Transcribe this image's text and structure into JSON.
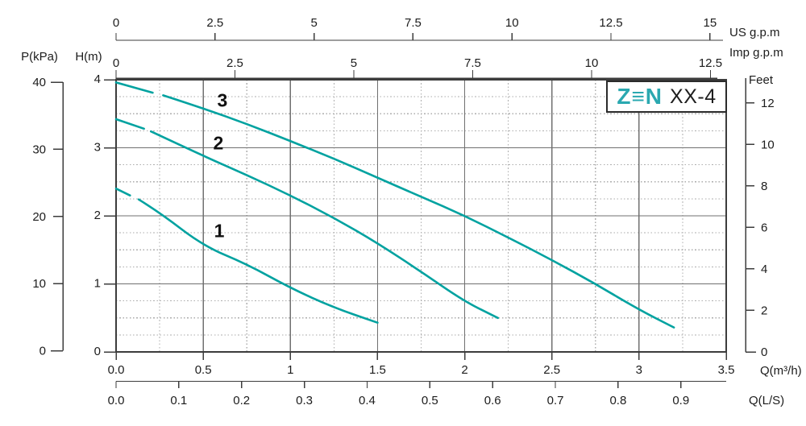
{
  "logo": {
    "brand": "Z≡N",
    "model": "XX-4"
  },
  "axis_titles": {
    "us_gpm": "US  g.p.m",
    "imp_gpm": "Imp  g.p.m",
    "p_kpa": "P(kPa)",
    "h_m": "H(m)",
    "feet": "Feet",
    "q_m3h": "Q(m³/h)",
    "q_ls": "Q(L/S)"
  },
  "colors": {
    "curve": "#00A2A0",
    "brand": "#2AA8B0",
    "grid_solid": "#707070",
    "grid_dot": "#ADADAD",
    "axis": "#3C3C3C",
    "text": "#1C1C1C"
  },
  "chart_data": {
    "type": "line",
    "title": "Pump performance curves XX-4",
    "x_primary": {
      "name": "Q(m³/h)",
      "range": [
        0,
        3.5
      ],
      "ticks": [
        "0.0",
        "0.5",
        "1",
        "1.5",
        "2",
        "2.5",
        "3",
        "3.5"
      ]
    },
    "x_us_gpm": {
      "name": "US g.p.m",
      "m3h_per_unit": 0.22712,
      "ticks": [
        "0",
        "2.5",
        "5",
        "7.5",
        "10",
        "12.5",
        "15"
      ]
    },
    "x_imp_gpm": {
      "name": "Imp g.p.m",
      "m3h_per_unit": 0.27277,
      "ticks": [
        "0",
        "2.5",
        "5",
        "7.5",
        "10",
        "12.5"
      ]
    },
    "x_ls": {
      "name": "Q(L/S)",
      "m3h_per_unit": 3.6,
      "ticks": [
        "0.0",
        "0.1",
        "0.2",
        "0.3",
        "0.4",
        "0.5",
        "0.6",
        "0.7",
        "0.8",
        "0.9"
      ]
    },
    "y_primary": {
      "name": "H(m)",
      "range": [
        0,
        4
      ],
      "ticks": [
        "4",
        "3",
        "2",
        "1",
        "0"
      ]
    },
    "y_kpa": {
      "name": "P(kPa)",
      "range": [
        0,
        40
      ],
      "ticks": [
        "40",
        "30",
        "20",
        "10",
        "0"
      ]
    },
    "y_feet": {
      "name": "Feet",
      "m_per_unit": 0.3048,
      "ticks": [
        "12",
        "10",
        "8",
        "6",
        "4",
        "2",
        "0"
      ]
    },
    "grid": {
      "x_major": 0.5,
      "x_minor": 0.25,
      "y_major": 1,
      "y_minor": 0.25,
      "grid_on": true
    },
    "legend_position": "labels-on-curves",
    "series": [
      {
        "name": "3",
        "label_at": [
          0.61,
          3.7
        ],
        "gap": [
          0.21,
          0.27
        ],
        "points": [
          [
            0,
            3.96
          ],
          [
            0.21,
            3.81
          ],
          [
            0.27,
            3.77
          ],
          [
            0.5,
            3.58
          ],
          [
            0.75,
            3.35
          ],
          [
            1.0,
            3.1
          ],
          [
            1.25,
            2.84
          ],
          [
            1.5,
            2.56
          ],
          [
            1.75,
            2.28
          ],
          [
            2.0,
            2.0
          ],
          [
            2.25,
            1.68
          ],
          [
            2.5,
            1.35
          ],
          [
            2.75,
            1.0
          ],
          [
            3.0,
            0.62
          ],
          [
            3.2,
            0.36
          ]
        ]
      },
      {
        "name": "2",
        "label_at": [
          0.587,
          3.07
        ],
        "gap": [
          0.16,
          0.2
        ],
        "points": [
          [
            0,
            3.42
          ],
          [
            0.16,
            3.28
          ],
          [
            0.2,
            3.24
          ],
          [
            0.5,
            2.88
          ],
          [
            0.75,
            2.6
          ],
          [
            1.0,
            2.3
          ],
          [
            1.25,
            1.97
          ],
          [
            1.5,
            1.6
          ],
          [
            1.75,
            1.18
          ],
          [
            2.0,
            0.74
          ],
          [
            2.19,
            0.5
          ]
        ]
      },
      {
        "name": "1",
        "label_at": [
          0.592,
          1.78
        ],
        "gap": [
          0.08,
          0.13
        ],
        "points": [
          [
            0,
            2.4
          ],
          [
            0.08,
            2.3
          ],
          [
            0.13,
            2.24
          ],
          [
            0.25,
            2.05
          ],
          [
            0.5,
            1.56
          ],
          [
            0.75,
            1.29
          ],
          [
            1.0,
            0.94
          ],
          [
            1.25,
            0.65
          ],
          [
            1.5,
            0.43
          ]
        ]
      }
    ]
  }
}
